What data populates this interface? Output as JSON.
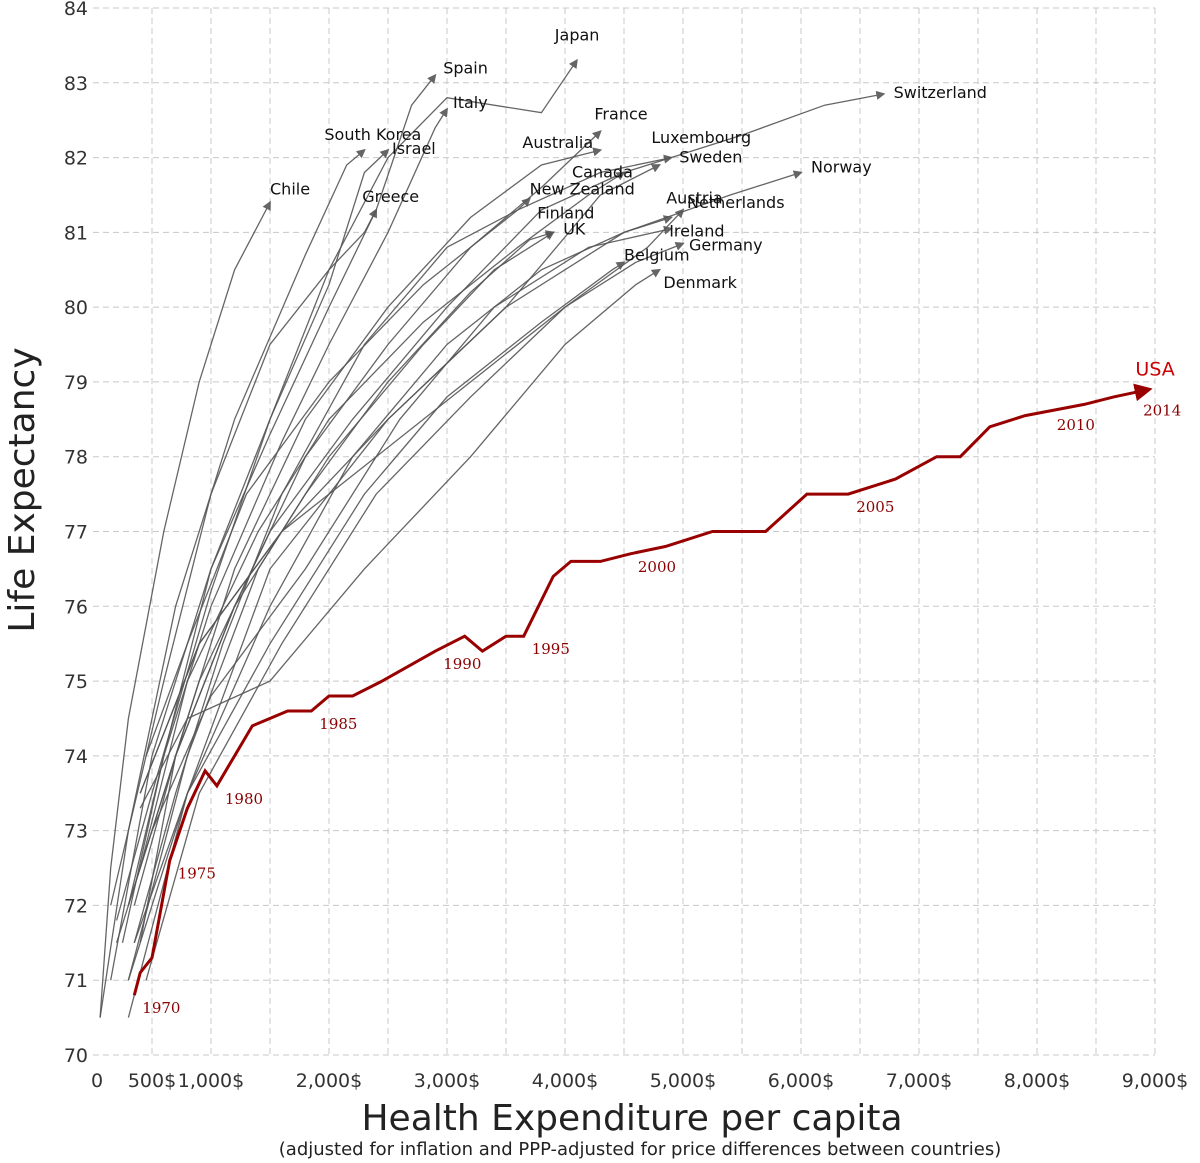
{
  "chart_data": {
    "type": "line",
    "title": "",
    "xlabel": "Health Expenditure per capita",
    "xlabel_note": "(adjusted for inflation and PPP-adjusted for price differences between countries)",
    "ylabel": "Life Expectancy",
    "xlim": [
      0,
      9000
    ],
    "ylim": [
      70,
      84
    ],
    "grid": true,
    "x_ticks": [
      {
        "value": 0,
        "label": "0"
      },
      {
        "value": 500,
        "label": "500$"
      },
      {
        "value": 1000,
        "label": "1,000$"
      },
      {
        "value": 2000,
        "label": "2,000$"
      },
      {
        "value": 3000,
        "label": "3,000$"
      },
      {
        "value": 4000,
        "label": "4,000$"
      },
      {
        "value": 5000,
        "label": "5,000$"
      },
      {
        "value": 6000,
        "label": "6,000$"
      },
      {
        "value": 7000,
        "label": "7,000$"
      },
      {
        "value": 8000,
        "label": "8,000$"
      },
      {
        "value": 9000,
        "label": "9,000$"
      }
    ],
    "x_gridlines": [
      500,
      1000,
      1500,
      2000,
      2500,
      3000,
      3500,
      4000,
      4500,
      5000,
      5500,
      6000,
      6500,
      7000,
      7500,
      8000,
      8500,
      9000
    ],
    "y_ticks": [
      70,
      71,
      72,
      73,
      74,
      75,
      76,
      77,
      78,
      79,
      80,
      81,
      82,
      83,
      84
    ],
    "series": [
      {
        "name": "Japan",
        "label": "Japan",
        "values": [
          [
            200,
            71.8
          ],
          [
            500,
            73.5
          ],
          [
            1000,
            76.2
          ],
          [
            1500,
            78.5
          ],
          [
            2000,
            80.5
          ],
          [
            2500,
            82.0
          ],
          [
            3000,
            82.8
          ],
          [
            3800,
            82.6
          ],
          [
            4100,
            83.3
          ]
        ]
      },
      {
        "name": "Spain",
        "label": "Spain",
        "values": [
          [
            300,
            72.0
          ],
          [
            600,
            74.0
          ],
          [
            1000,
            76.5
          ],
          [
            1500,
            78.3
          ],
          [
            2000,
            80.0
          ],
          [
            2400,
            81.3
          ],
          [
            2700,
            82.7
          ],
          [
            2900,
            83.1
          ]
        ]
      },
      {
        "name": "Switzerland",
        "label": "Switzerland",
        "values": [
          [
            500,
            73.0
          ],
          [
            900,
            75.0
          ],
          [
            1500,
            77.0
          ],
          [
            2200,
            78.5
          ],
          [
            3000,
            80.0
          ],
          [
            3800,
            81.3
          ],
          [
            4500,
            81.8
          ],
          [
            5500,
            82.3
          ],
          [
            6200,
            82.7
          ],
          [
            6700,
            82.85
          ]
        ]
      },
      {
        "name": "Italy",
        "label": "Italy",
        "values": [
          [
            250,
            71.5
          ],
          [
            600,
            74.0
          ],
          [
            1000,
            76.0
          ],
          [
            1600,
            78.2
          ],
          [
            2000,
            79.5
          ],
          [
            2500,
            81.0
          ],
          [
            2900,
            82.4
          ],
          [
            3000,
            82.65
          ]
        ]
      },
      {
        "name": "Australia",
        "label": "Australia",
        "values": [
          [
            400,
            71.5
          ],
          [
            700,
            74.0
          ],
          [
            1200,
            76.5
          ],
          [
            1800,
            78.5
          ],
          [
            2500,
            80.0
          ],
          [
            3200,
            81.2
          ],
          [
            3800,
            81.9
          ],
          [
            4300,
            82.1
          ]
        ]
      },
      {
        "name": "France",
        "label": "France",
        "values": [
          [
            350,
            72.0
          ],
          [
            700,
            74.0
          ],
          [
            1200,
            76.0
          ],
          [
            1800,
            78.0
          ],
          [
            2500,
            79.5
          ],
          [
            3200,
            80.8
          ],
          [
            3800,
            81.6
          ],
          [
            4300,
            82.35
          ]
        ]
      },
      {
        "name": "Luxembourg",
        "label": "Luxembourg",
        "values": [
          [
            300,
            70.5
          ],
          [
            800,
            73.5
          ],
          [
            1500,
            76.5
          ],
          [
            2500,
            78.5
          ],
          [
            3500,
            80.0
          ],
          [
            4300,
            81.5
          ],
          [
            4800,
            81.9
          ]
        ]
      },
      {
        "name": "South Korea",
        "label": "South Korea",
        "values": [
          [
            60,
            70.5
          ],
          [
            300,
            73.0
          ],
          [
            700,
            76.0
          ],
          [
            1200,
            78.5
          ],
          [
            1800,
            80.7
          ],
          [
            2150,
            81.9
          ],
          [
            2300,
            82.1
          ]
        ]
      },
      {
        "name": "Israel",
        "label": "Israel",
        "values": [
          [
            150,
            71.0
          ],
          [
            500,
            74.0
          ],
          [
            1000,
            76.5
          ],
          [
            1500,
            78.5
          ],
          [
            2000,
            80.3
          ],
          [
            2300,
            81.8
          ],
          [
            2500,
            82.1
          ]
        ]
      },
      {
        "name": "Canada",
        "label": "Canada",
        "values": [
          [
            400,
            72.5
          ],
          [
            800,
            75.0
          ],
          [
            1400,
            77.0
          ],
          [
            2000,
            78.5
          ],
          [
            2800,
            79.8
          ],
          [
            3600,
            80.8
          ],
          [
            4200,
            81.5
          ],
          [
            4500,
            81.8
          ]
        ]
      },
      {
        "name": "Sweden",
        "label": "Sweden",
        "values": [
          [
            450,
            74.0
          ],
          [
            800,
            75.5
          ],
          [
            1300,
            77.5
          ],
          [
            2000,
            79.0
          ],
          [
            2800,
            80.3
          ],
          [
            3600,
            81.3
          ],
          [
            4300,
            81.8
          ],
          [
            4900,
            82.0
          ]
        ]
      },
      {
        "name": "Norway",
        "label": "Norway",
        "values": [
          [
            400,
            73.5
          ],
          [
            900,
            75.5
          ],
          [
            1600,
            77.0
          ],
          [
            2500,
            78.5
          ],
          [
            3500,
            80.0
          ],
          [
            4500,
            81.0
          ],
          [
            5400,
            81.5
          ],
          [
            5900,
            81.75
          ],
          [
            6000,
            81.8
          ]
        ]
      },
      {
        "name": "Chile",
        "label": "Chile",
        "values": [
          [
            60,
            70.5
          ],
          [
            150,
            72.5
          ],
          [
            300,
            74.5
          ],
          [
            600,
            77.0
          ],
          [
            900,
            79.0
          ],
          [
            1200,
            80.5
          ],
          [
            1500,
            81.4
          ]
        ]
      },
      {
        "name": "Greece",
        "label": "Greece",
        "values": [
          [
            150,
            72.0
          ],
          [
            600,
            75.0
          ],
          [
            1000,
            77.5
          ],
          [
            1500,
            79.5
          ],
          [
            2000,
            80.5
          ],
          [
            2300,
            81.0
          ],
          [
            2400,
            81.3
          ]
        ]
      },
      {
        "name": "New Zealand",
        "label": "New Zealand",
        "values": [
          [
            350,
            71.5
          ],
          [
            700,
            73.5
          ],
          [
            1100,
            75.5
          ],
          [
            1600,
            77.5
          ],
          [
            2300,
            79.5
          ],
          [
            3000,
            80.8
          ],
          [
            3600,
            81.3
          ],
          [
            3700,
            81.45
          ]
        ]
      },
      {
        "name": "Finland",
        "label": "Finland",
        "values": [
          [
            300,
            71.0
          ],
          [
            800,
            74.0
          ],
          [
            1400,
            76.5
          ],
          [
            2000,
            78.0
          ],
          [
            2800,
            79.5
          ],
          [
            3400,
            80.5
          ],
          [
            3900,
            81.0
          ]
        ]
      },
      {
        "name": "UK",
        "label": "UK",
        "values": [
          [
            300,
            72.0
          ],
          [
            700,
            74.0
          ],
          [
            1200,
            76.0
          ],
          [
            1800,
            77.5
          ],
          [
            2500,
            79.0
          ],
          [
            3200,
            80.2
          ],
          [
            3700,
            80.9
          ],
          [
            3900,
            81.0
          ]
        ]
      },
      {
        "name": "Austria",
        "label": "Austria",
        "values": [
          [
            300,
            71.0
          ],
          [
            800,
            73.5
          ],
          [
            1500,
            76.0
          ],
          [
            2200,
            78.0
          ],
          [
            3000,
            79.5
          ],
          [
            3800,
            80.5
          ],
          [
            4500,
            81.0
          ],
          [
            4900,
            81.2
          ]
        ]
      },
      {
        "name": "Netherlands",
        "label": "Netherlands",
        "values": [
          [
            400,
            73.5
          ],
          [
            900,
            75.5
          ],
          [
            1600,
            77.0
          ],
          [
            2400,
            78.0
          ],
          [
            3200,
            79.0
          ],
          [
            4000,
            80.0
          ],
          [
            4700,
            80.8
          ],
          [
            5000,
            81.3
          ]
        ]
      },
      {
        "name": "Ireland",
        "label": "Ireland",
        "values": [
          [
            200,
            71.5
          ],
          [
            500,
            73.0
          ],
          [
            1000,
            74.8
          ],
          [
            1800,
            76.5
          ],
          [
            2600,
            78.5
          ],
          [
            3400,
            80.0
          ],
          [
            4200,
            80.8
          ],
          [
            4900,
            81.05
          ]
        ]
      },
      {
        "name": "Germany",
        "label": "Germany",
        "values": [
          [
            450,
            71.0
          ],
          [
            900,
            73.5
          ],
          [
            1600,
            75.5
          ],
          [
            2400,
            77.5
          ],
          [
            3200,
            78.8
          ],
          [
            4000,
            80.0
          ],
          [
            4600,
            80.6
          ],
          [
            5000,
            80.85
          ]
        ]
      },
      {
        "name": "Belgium",
        "label": "Belgium",
        "values": [
          [
            350,
            71.5
          ],
          [
            800,
            73.5
          ],
          [
            1500,
            75.5
          ],
          [
            2300,
            77.5
          ],
          [
            3000,
            78.8
          ],
          [
            3800,
            79.8
          ],
          [
            4400,
            80.5
          ],
          [
            4500,
            80.6
          ]
        ]
      },
      {
        "name": "Denmark",
        "label": "Denmark",
        "values": [
          [
            400,
            73.3
          ],
          [
            800,
            74.5
          ],
          [
            1500,
            75.0
          ],
          [
            2300,
            76.5
          ],
          [
            3200,
            78.0
          ],
          [
            4000,
            79.5
          ],
          [
            4600,
            80.3
          ],
          [
            4800,
            80.5
          ]
        ]
      },
      {
        "name": "USA",
        "label": "USA",
        "highlight": true,
        "values": [
          [
            350,
            70.8
          ],
          [
            400,
            71.1
          ],
          [
            500,
            71.3
          ],
          [
            650,
            72.6
          ],
          [
            800,
            73.3
          ],
          [
            950,
            73.8
          ],
          [
            1050,
            73.6
          ],
          [
            1350,
            74.4
          ],
          [
            1650,
            74.6
          ],
          [
            1850,
            74.6
          ],
          [
            2000,
            74.8
          ],
          [
            2200,
            74.8
          ],
          [
            2450,
            75.0
          ],
          [
            2900,
            75.4
          ],
          [
            3150,
            75.6
          ],
          [
            3300,
            75.4
          ],
          [
            3500,
            75.6
          ],
          [
            3650,
            75.6
          ],
          [
            3900,
            76.4
          ],
          [
            4050,
            76.6
          ],
          [
            4300,
            76.6
          ],
          [
            4550,
            76.7
          ],
          [
            4850,
            76.8
          ],
          [
            5250,
            77.0
          ],
          [
            5700,
            77.0
          ],
          [
            6050,
            77.5
          ],
          [
            6400,
            77.5
          ],
          [
            6800,
            77.7
          ],
          [
            7150,
            78.0
          ],
          [
            7350,
            78.0
          ],
          [
            7600,
            78.4
          ],
          [
            7900,
            78.55
          ],
          [
            8400,
            78.7
          ],
          [
            8650,
            78.8
          ],
          [
            8950,
            78.9
          ]
        ]
      }
    ],
    "usa_year_labels": [
      {
        "year": "1970",
        "x": 350,
        "y": 70.8
      },
      {
        "year": "1975",
        "x": 650,
        "y": 72.6
      },
      {
        "year": "1980",
        "x": 1050,
        "y": 73.6
      },
      {
        "year": "1985",
        "x": 1850,
        "y": 74.6
      },
      {
        "year": "1990",
        "x": 2900,
        "y": 75.4
      },
      {
        "year": "1995",
        "x": 3650,
        "y": 75.6
      },
      {
        "year": "2000",
        "x": 4550,
        "y": 76.7
      },
      {
        "year": "2005",
        "x": 6400,
        "y": 77.5
      },
      {
        "year": "2010",
        "x": 8100,
        "y": 78.6
      },
      {
        "year": "2014",
        "x": 8950,
        "y": 78.9
      }
    ]
  }
}
